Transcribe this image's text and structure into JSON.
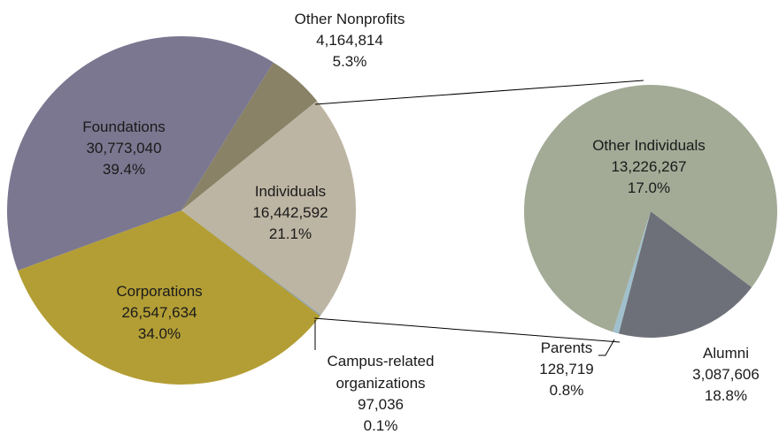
{
  "chart_data": [
    {
      "type": "pie",
      "categories": [
        "Other Nonprofits",
        "Individuals",
        "Campus-related organizations",
        "Corporations",
        "Foundations"
      ],
      "values": [
        4164814,
        16442592,
        97036,
        26547634,
        30773040
      ],
      "value_labels": [
        "4,164,814",
        "16,442,592",
        "97,036",
        "26,547,634",
        "30,773,040"
      ],
      "percent_labels": [
        "5.3%",
        "21.1%",
        "0.1%",
        "34.0%",
        "39.4%"
      ],
      "colors": [
        "#8a8266",
        "#bdb5a3",
        "#8d9ea4",
        "#b39e35",
        "#7b7790"
      ]
    },
    {
      "type": "pie",
      "categories": [
        "Alumni",
        "Parents",
        "Other Individuals"
      ],
      "values": [
        3087606,
        128719,
        13226267
      ],
      "value_labels": [
        "3,087,606",
        "128,719",
        "13,226,267"
      ],
      "percent_labels": [
        "18.8%",
        "0.8%",
        "17.0%"
      ],
      "colors": [
        "#6d7078",
        "#9fc0cc",
        "#a3ab97"
      ]
    }
  ]
}
